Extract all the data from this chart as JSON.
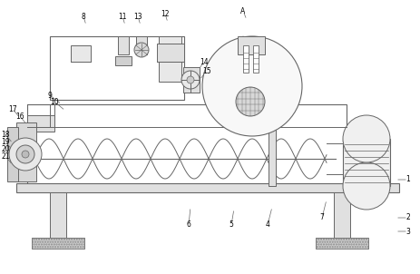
{
  "bg_color": "#ffffff",
  "line_color": "#666666",
  "dot_bg": "#e8e8e8",
  "annotations": [
    [
      "1",
      436,
      198,
      450,
      198
    ],
    [
      "2",
      436,
      240,
      450,
      240
    ],
    [
      "3",
      436,
      255,
      450,
      255
    ],
    [
      "4",
      300,
      228,
      295,
      248
    ],
    [
      "5",
      258,
      230,
      255,
      248
    ],
    [
      "6",
      210,
      228,
      208,
      248
    ],
    [
      "7",
      360,
      220,
      355,
      240
    ],
    [
      "8",
      95,
      28,
      92,
      18
    ],
    [
      "9",
      68,
      115,
      55,
      105
    ],
    [
      "10",
      72,
      122,
      60,
      112
    ],
    [
      "11",
      138,
      28,
      135,
      18
    ],
    [
      "12",
      185,
      25,
      182,
      15
    ],
    [
      "13",
      155,
      28,
      152,
      18
    ],
    [
      "14",
      218,
      78,
      225,
      68
    ],
    [
      "15",
      220,
      88,
      228,
      78
    ],
    [
      "16",
      30,
      138,
      22,
      128
    ],
    [
      "17",
      22,
      130,
      14,
      120
    ],
    [
      "18",
      14,
      158,
      6,
      148
    ],
    [
      "19",
      14,
      166,
      6,
      156
    ],
    [
      "20",
      14,
      174,
      6,
      164
    ],
    [
      "21",
      14,
      182,
      6,
      172
    ],
    [
      "A",
      272,
      22,
      268,
      12
    ]
  ]
}
